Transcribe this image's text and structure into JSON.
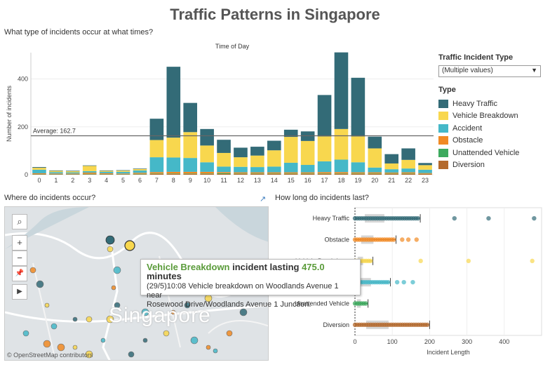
{
  "title": "Traffic Patterns in Singapore",
  "sections": {
    "top": "What type of incidents occur at what times?",
    "map": "Where do incidents occur?",
    "duration": "How long do incidents last?"
  },
  "filter": {
    "label": "Traffic Incident Type",
    "value": "(Multiple values)",
    "arrow": "▼"
  },
  "legend": {
    "title": "Type",
    "items": [
      {
        "name": "Heavy Traffic",
        "color": "#336b77"
      },
      {
        "name": "Vehicle Breakdown",
        "color": "#f8d74e"
      },
      {
        "name": "Accident",
        "color": "#45b8c8"
      },
      {
        "name": "Obstacle",
        "color": "#f18a24"
      },
      {
        "name": "Unattended Vehicle",
        "color": "#3daa5e"
      },
      {
        "name": "Diversion",
        "color": "#b46a2d"
      }
    ]
  },
  "map": {
    "city_label": "Singapore",
    "credit": "© OpenStreetMap contributors",
    "controls": [
      "⌕",
      "+",
      "−",
      "📌",
      "▶"
    ]
  },
  "tooltip": {
    "type": "Vehicle Breakdown",
    "mid": " incident lasting ",
    "value": "475.0",
    "unit": " minutes",
    "line1": "(29/5)10:08 Vehicle breakdown on Woodlands Avenue 1 near",
    "line2": "Rosewood Drive/Woodlands Avenue 1 Junction."
  },
  "chart_data": [
    {
      "type": "bar",
      "title": "Time of Day",
      "ylabel": "Number of incidents",
      "ylim": [
        0,
        510
      ],
      "yticks": [
        0,
        200,
        400
      ],
      "categories": [
        "0",
        "1",
        "2",
        "3",
        "4",
        "5",
        "6",
        "7",
        "8",
        "9",
        "10",
        "11",
        "12",
        "13",
        "14",
        "15",
        "16",
        "17",
        "18",
        "19",
        "20",
        "21",
        "22",
        "23"
      ],
      "series": [
        {
          "name": "Diversion",
          "values": [
            2,
            2,
            2,
            2,
            2,
            2,
            2,
            3,
            3,
            3,
            3,
            3,
            3,
            3,
            3,
            3,
            3,
            3,
            3,
            3,
            3,
            3,
            3,
            3
          ]
        },
        {
          "name": "Unattended Vehicle",
          "values": [
            1,
            1,
            1,
            2,
            1,
            1,
            2,
            2,
            2,
            2,
            2,
            3,
            2,
            2,
            2,
            2,
            2,
            2,
            2,
            2,
            2,
            2,
            2,
            1
          ]
        },
        {
          "name": "Obstacle",
          "values": [
            3,
            2,
            2,
            5,
            3,
            2,
            4,
            6,
            7,
            7,
            7,
            5,
            5,
            5,
            5,
            5,
            5,
            6,
            6,
            5,
            5,
            4,
            5,
            3
          ]
        },
        {
          "name": "Accident",
          "values": [
            15,
            6,
            5,
            6,
            6,
            7,
            10,
            62,
            60,
            58,
            40,
            23,
            23,
            22,
            24,
            40,
            31,
            45,
            52,
            42,
            20,
            14,
            16,
            14
          ]
        },
        {
          "name": "Vehicle Breakdown",
          "values": [
            8,
            5,
            5,
            22,
            4,
            5,
            6,
            72,
            83,
            108,
            70,
            57,
            40,
            48,
            68,
            108,
            100,
            104,
            128,
            108,
            80,
            24,
            36,
            19
          ]
        },
        {
          "name": "Heavy Traffic",
          "values": [
            3,
            2,
            2,
            2,
            2,
            2,
            2,
            89,
            296,
            122,
            69,
            55,
            40,
            37,
            40,
            30,
            40,
            173,
            320,
            245,
            49,
            39,
            48,
            9
          ]
        }
      ],
      "reference_line": {
        "label": "Average: 162.7",
        "value": 162.7
      }
    },
    {
      "type": "scatter",
      "xlabel": "Incident Length",
      "xlim": [
        0,
        500
      ],
      "xticks": [
        0,
        100,
        200,
        300,
        400
      ],
      "categories": [
        "Heavy Traffic",
        "Obstacle",
        "Vehicle Breakdown",
        "Accident",
        "Unattended Vehicle",
        "Diversion"
      ],
      "boxplots": [
        {
          "name": "Heavy Traffic",
          "whisker_high": 175,
          "max_outlier": 480
        },
        {
          "name": "Obstacle",
          "whisker_high": 110,
          "max_outlier": 165
        },
        {
          "name": "Vehicle Breakdown",
          "whisker_high": 48,
          "max_outlier": 475
        },
        {
          "name": "Accident",
          "whisker_high": 95,
          "max_outlier": 155
        },
        {
          "name": "Unattended Vehicle",
          "whisker_high": 35,
          "max_outlier": 35
        },
        {
          "name": "Diversion",
          "whisker_high": 200,
          "max_outlier": 200
        }
      ]
    }
  ]
}
